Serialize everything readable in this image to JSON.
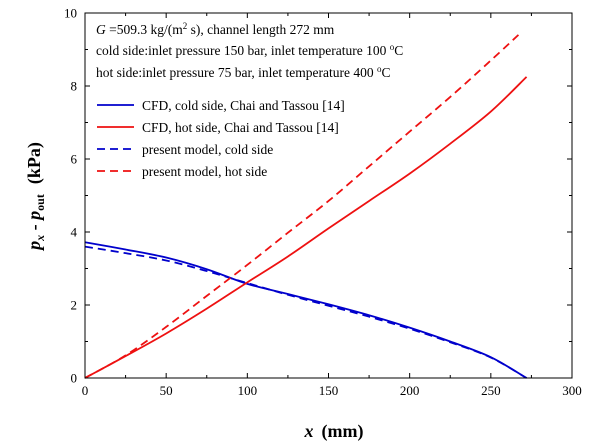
{
  "chart_data": {
    "type": "line",
    "xlabel_var": "x",
    "xlabel_unit": "(mm)",
    "ylabel_var": "p",
    "ylabel_sub_x": "x",
    "ylabel_minus": " - ",
    "ylabel_var2": "p",
    "ylabel_sub_out": "out",
    "ylabel_unit": "(kPa)",
    "xlim": [
      0,
      300
    ],
    "ylim": [
      0,
      10
    ],
    "xticks": [
      0,
      50,
      100,
      150,
      200,
      250,
      300
    ],
    "yticks": [
      0,
      2,
      4,
      6,
      8,
      10
    ],
    "grid": false,
    "legend_position": "upper-left",
    "annotations": {
      "line1_var": "G",
      "line1_text": " =509.3 kg/(m",
      "line1_sup": "2",
      "line1_tail": " s), channel length 272 mm",
      "line2_text": "cold side:inlet pressure 150 bar, inlet temperature 100 ",
      "line2_sup": "o",
      "line2_unit": "C",
      "line3_text": "hot side:inlet pressure 75 bar, inlet temperature 400 ",
      "line3_sup": "o",
      "line3_unit": "C"
    },
    "series": [
      {
        "name": "CFD, cold side, Chai and Tassou [14]",
        "color": "#0000cc",
        "style": "solid",
        "x": [
          0,
          25,
          50,
          75,
          100,
          125,
          150,
          175,
          200,
          225,
          250,
          272
        ],
        "y": [
          3.72,
          3.52,
          3.3,
          2.98,
          2.58,
          2.3,
          2.02,
          1.72,
          1.38,
          1.0,
          0.57,
          0.0
        ]
      },
      {
        "name": "CFD, hot side, Chai and Tassou [14]",
        "color": "#ee1111",
        "style": "solid",
        "x": [
          0,
          25,
          50,
          75,
          100,
          125,
          150,
          175,
          200,
          225,
          250,
          272
        ],
        "y": [
          0.0,
          0.6,
          1.22,
          1.9,
          2.62,
          3.33,
          4.1,
          4.85,
          5.6,
          6.42,
          7.3,
          8.25
        ]
      },
      {
        "name": "present model, cold side",
        "color": "#0000cc",
        "style": "dashed",
        "x": [
          0,
          25,
          50,
          75,
          100,
          125,
          150,
          175,
          200,
          225,
          250,
          272
        ],
        "y": [
          3.6,
          3.42,
          3.22,
          2.93,
          2.6,
          2.28,
          1.98,
          1.68,
          1.35,
          0.98,
          0.56,
          0.0
        ]
      },
      {
        "name": "present model, hot side",
        "color": "#ee1111",
        "style": "dashed",
        "x": [
          0,
          25,
          50,
          75,
          100,
          125,
          150,
          175,
          200,
          225,
          250,
          267
        ],
        "y": [
          0.0,
          0.62,
          1.4,
          2.25,
          3.1,
          3.98,
          4.85,
          5.8,
          6.75,
          7.7,
          8.7,
          9.4
        ]
      }
    ]
  }
}
